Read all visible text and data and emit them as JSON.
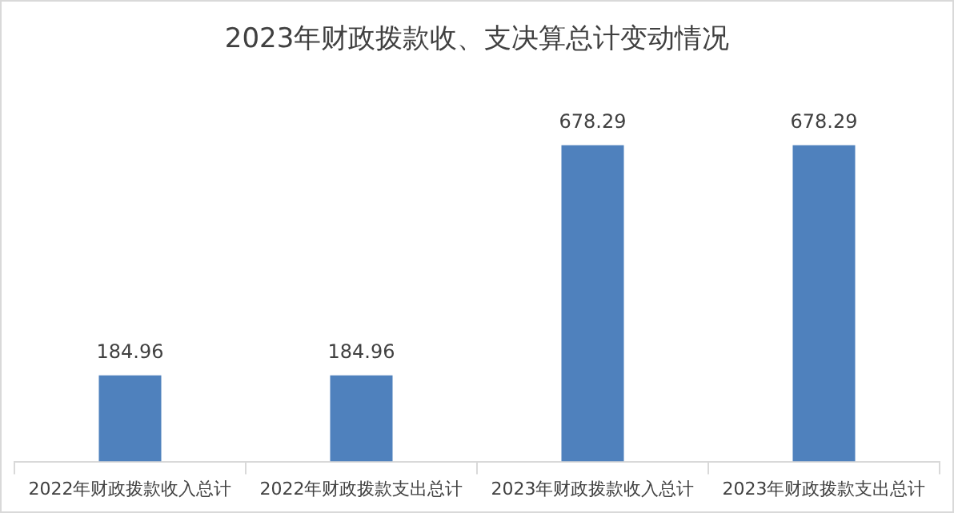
{
  "chart_data": {
    "type": "bar",
    "title": "2023年财政拨款收、支决算总计变动情况",
    "categories": [
      "2022年财政拨款收入总计",
      "2022年财政拨款支出总计",
      "2023年财政拨款收入总计",
      "2023年财政拨款支出总计"
    ],
    "values": [
      184.96,
      184.96,
      678.29,
      678.29
    ],
    "color": "#4f81bd",
    "data_labels": true,
    "legend": false,
    "grid": false
  }
}
